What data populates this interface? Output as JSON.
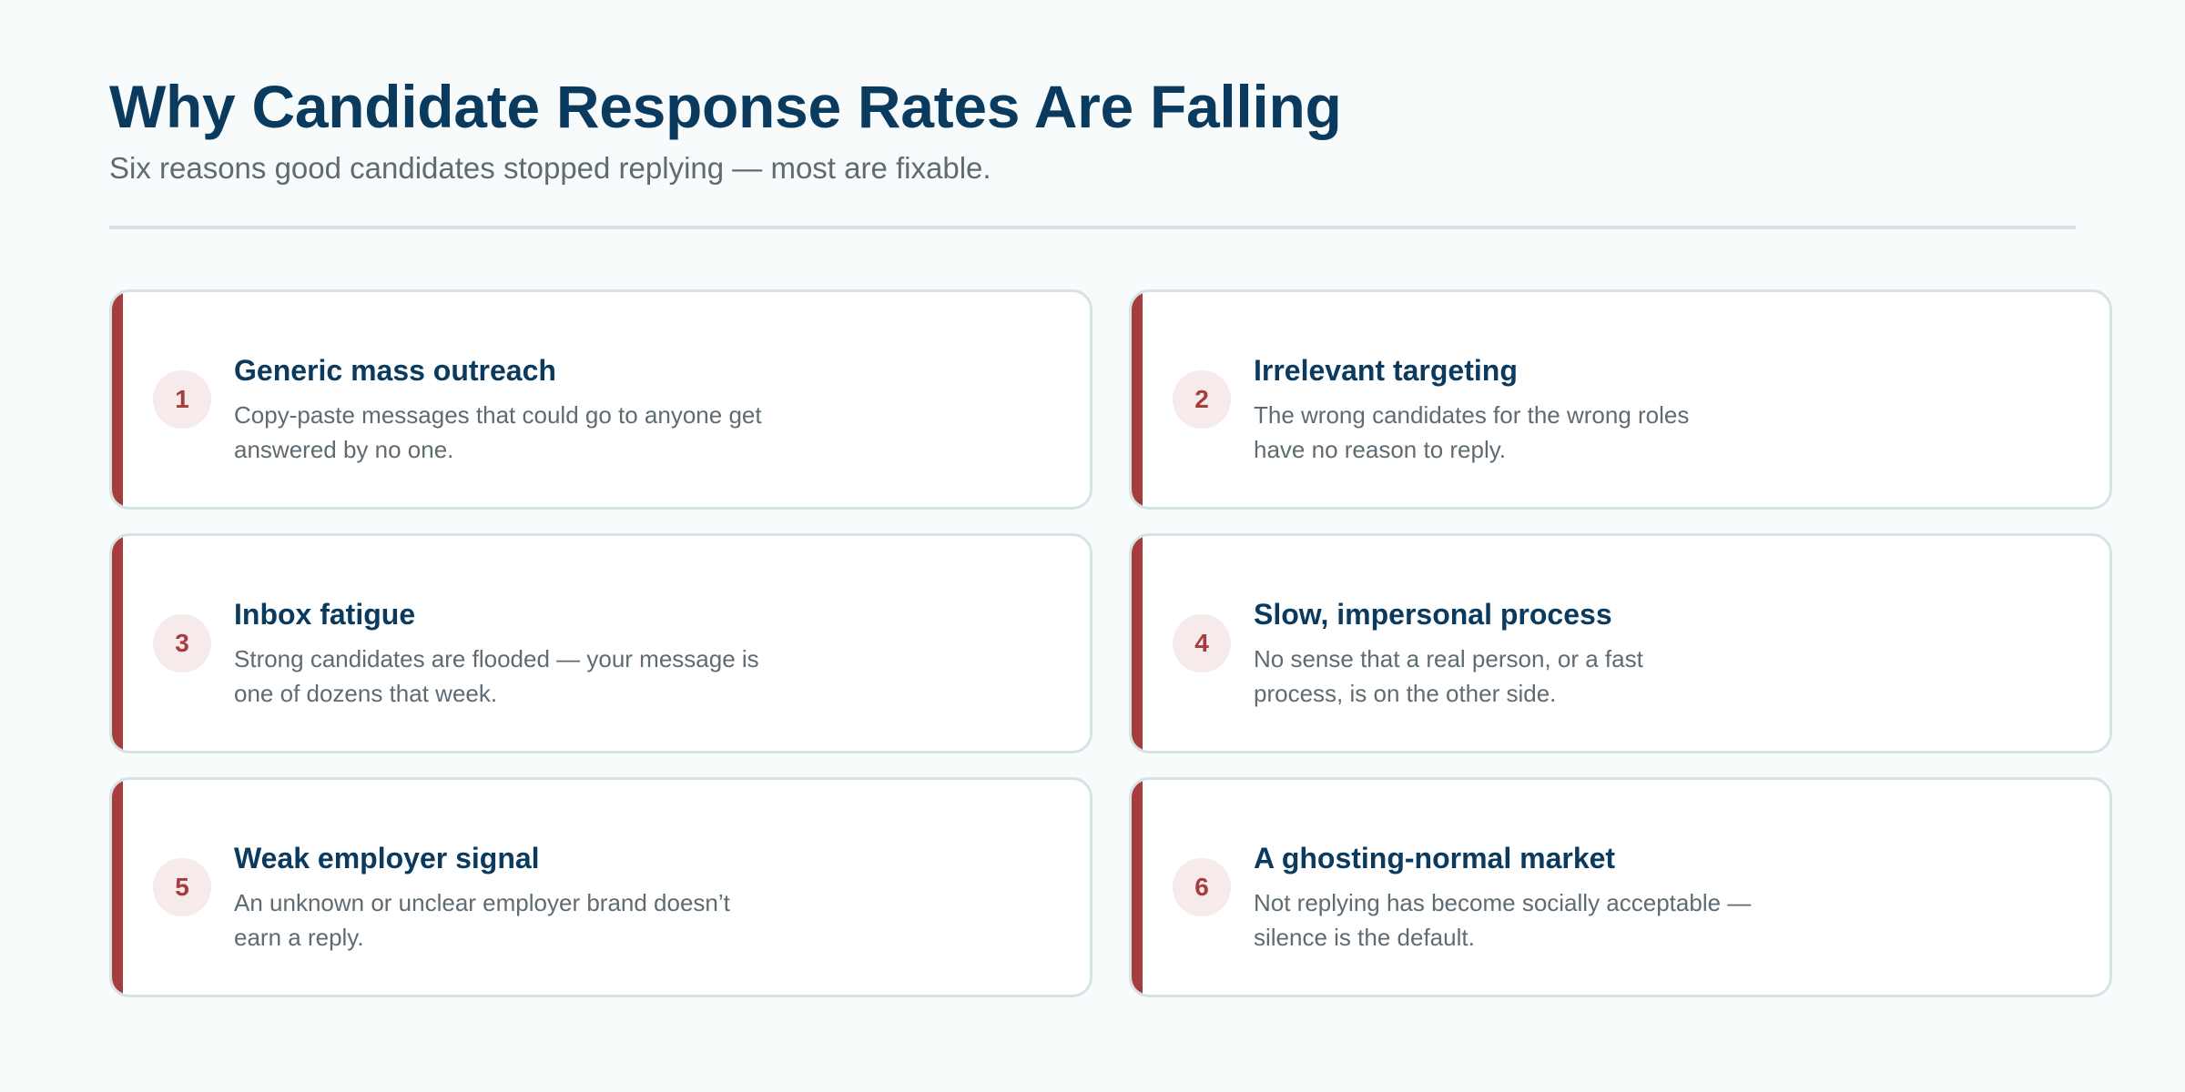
{
  "header": {
    "title": "Why Candidate Response Rates Are Falling",
    "subtitle": "Six reasons good candidates stopped replying — most are fixable."
  },
  "colors": {
    "accent": "#a63d3d",
    "heading": "#0b3a5f",
    "body_text": "#5f6b72",
    "border": "#d6e3e5",
    "badge_bg": "#f6eaea",
    "page_bg": "#f8fbfb"
  },
  "cards": [
    {
      "number": "1",
      "title": "Generic mass outreach",
      "description": "Copy-paste messages that could go to anyone get answered by no one."
    },
    {
      "number": "2",
      "title": "Irrelevant targeting",
      "description": "The wrong candidates for the wrong roles have no reason to reply."
    },
    {
      "number": "3",
      "title": "Inbox fatigue",
      "description": "Strong candidates are flooded — your message is one of dozens that week."
    },
    {
      "number": "4",
      "title": "Slow, impersonal process",
      "description": "No sense that a real person, or a fast process, is on the other side."
    },
    {
      "number": "5",
      "title": "Weak employer signal",
      "description": "An unknown or unclear employer brand doesn’t earn a reply."
    },
    {
      "number": "6",
      "title": "A ghosting-normal market",
      "description": "Not replying has become socially acceptable — silence is the default."
    }
  ]
}
